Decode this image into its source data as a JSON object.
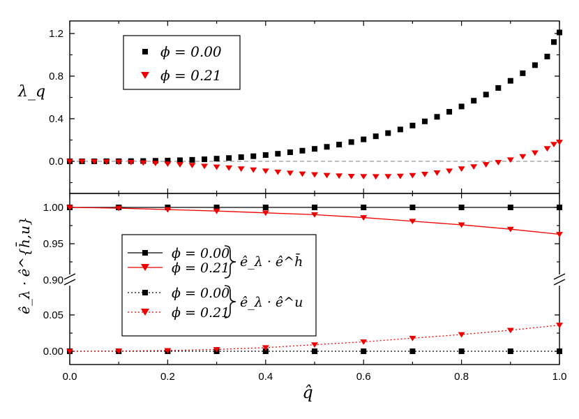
{
  "chart_data": [
    {
      "type": "scatter",
      "panel": "top",
      "ylabel": "λ_q",
      "xlim": [
        0,
        1
      ],
      "ylim": [
        -0.2,
        1.3
      ],
      "yticks": [
        "1.2",
        "0.8",
        "0.4",
        "0.0"
      ],
      "reference_line": 0.0,
      "legend": {
        "placement": "top-left",
        "entries": [
          "ϕ = 0.00",
          "ϕ = 0.21"
        ]
      },
      "series": [
        {
          "name": "ϕ = 0.00",
          "marker": "square",
          "color": "#000000",
          "points": [
            [
              0.0,
              0.0
            ],
            [
              0.025,
              0.0
            ],
            [
              0.05,
              0.0
            ],
            [
              0.075,
              0.001
            ],
            [
              0.1,
              0.001
            ],
            [
              0.125,
              0.002
            ],
            [
              0.15,
              0.003
            ],
            [
              0.175,
              0.005
            ],
            [
              0.2,
              0.007
            ],
            [
              0.225,
              0.01
            ],
            [
              0.25,
              0.014
            ],
            [
              0.275,
              0.019
            ],
            [
              0.3,
              0.025
            ],
            [
              0.325,
              0.031
            ],
            [
              0.35,
              0.039
            ],
            [
              0.375,
              0.048
            ],
            [
              0.4,
              0.059
            ],
            [
              0.425,
              0.071
            ],
            [
              0.45,
              0.085
            ],
            [
              0.475,
              0.1
            ],
            [
              0.5,
              0.117
            ],
            [
              0.525,
              0.136
            ],
            [
              0.55,
              0.157
            ],
            [
              0.575,
              0.181
            ],
            [
              0.6,
              0.206
            ],
            [
              0.625,
              0.235
            ],
            [
              0.65,
              0.265
            ],
            [
              0.675,
              0.299
            ],
            [
              0.7,
              0.336
            ],
            [
              0.725,
              0.375
            ],
            [
              0.75,
              0.418
            ],
            [
              0.775,
              0.465
            ],
            [
              0.8,
              0.515
            ],
            [
              0.825,
              0.569
            ],
            [
              0.85,
              0.627
            ],
            [
              0.875,
              0.689
            ],
            [
              0.9,
              0.756
            ],
            [
              0.925,
              0.827
            ],
            [
              0.95,
              0.903
            ],
            [
              0.975,
              0.984
            ],
            [
              1.0,
              1.12
            ],
            [
              1.0,
              1.21
            ]
          ]
        },
        {
          "name": "ϕ = 0.21",
          "marker": "triangle-down",
          "color": "#ee0000",
          "points": [
            [
              0.0,
              0.0
            ],
            [
              0.025,
              -0.001
            ],
            [
              0.05,
              -0.002
            ],
            [
              0.075,
              -0.004
            ],
            [
              0.1,
              -0.006
            ],
            [
              0.125,
              -0.009
            ],
            [
              0.15,
              -0.013
            ],
            [
              0.175,
              -0.018
            ],
            [
              0.2,
              -0.024
            ],
            [
              0.225,
              -0.03
            ],
            [
              0.25,
              -0.037
            ],
            [
              0.275,
              -0.045
            ],
            [
              0.3,
              -0.053
            ],
            [
              0.325,
              -0.061
            ],
            [
              0.35,
              -0.07
            ],
            [
              0.375,
              -0.08
            ],
            [
              0.4,
              -0.09
            ],
            [
              0.425,
              -0.1
            ],
            [
              0.45,
              -0.11
            ],
            [
              0.475,
              -0.118
            ],
            [
              0.5,
              -0.125
            ],
            [
              0.525,
              -0.131
            ],
            [
              0.55,
              -0.136
            ],
            [
              0.575,
              -0.14
            ],
            [
              0.6,
              -0.142
            ],
            [
              0.625,
              -0.143
            ],
            [
              0.65,
              -0.142
            ],
            [
              0.675,
              -0.139
            ],
            [
              0.7,
              -0.132
            ],
            [
              0.725,
              -0.121
            ],
            [
              0.75,
              -0.107
            ],
            [
              0.775,
              -0.09
            ],
            [
              0.8,
              -0.07
            ],
            [
              0.825,
              -0.05
            ],
            [
              0.85,
              -0.03
            ],
            [
              0.875,
              -0.01
            ],
            [
              0.9,
              0.015
            ],
            [
              0.925,
              0.045
            ],
            [
              0.95,
              0.08
            ],
            [
              0.975,
              0.12
            ],
            [
              1.0,
              0.16
            ],
            [
              1.0,
              0.18
            ]
          ]
        }
      ]
    },
    {
      "type": "line",
      "panel": "bottom",
      "ylabel": "ê_λ · ê^{h̄,u}",
      "xlabel": "q̂",
      "xlim": [
        0,
        1
      ],
      "xticks": [
        "0.0",
        "0.2",
        "0.4",
        "0.6",
        "0.8",
        "1.0"
      ],
      "broken_axis": true,
      "upper_ylim": [
        0.9,
        1.0
      ],
      "upper_yticks": [
        "1.00",
        "0.95",
        "0.90"
      ],
      "lower_ylim": [
        0,
        0.05
      ],
      "lower_yticks": [
        "0.05",
        "0.00"
      ],
      "legend": {
        "placement": "center-left",
        "entries": [
          "ϕ = 0.00",
          "ϕ = 0.21",
          "ϕ = 0.00",
          "ϕ = 0.21"
        ],
        "group_labels": [
          "ê_λ · ê^h̄",
          "ê_λ · ê^u"
        ]
      },
      "x": [
        0.0,
        0.1,
        0.2,
        0.3,
        0.4,
        0.5,
        0.6,
        0.7,
        0.8,
        0.9,
        1.0
      ],
      "series": [
        {
          "name": "ϕ = 0.00",
          "group": "ê_λ · ê^h̄",
          "segment": "upper",
          "style": "solid",
          "marker": "square",
          "color": "#000000",
          "values": [
            1.0,
            1.0,
            1.0,
            1.0,
            1.0,
            1.0,
            1.0,
            1.0,
            1.0,
            1.0,
            1.0
          ]
        },
        {
          "name": "ϕ = 0.21",
          "group": "ê_λ · ê^h̄",
          "segment": "upper",
          "style": "solid",
          "marker": "triangle-down",
          "color": "#ee0000",
          "values": [
            1.0,
            0.999,
            0.997,
            0.995,
            0.9925,
            0.99,
            0.986,
            0.981,
            0.976,
            0.97,
            0.963
          ]
        },
        {
          "name": "ϕ = 0.00",
          "group": "ê_λ · ê^u",
          "segment": "lower",
          "style": "dotted",
          "marker": "square",
          "color": "#000000",
          "values": [
            0.0,
            0.0,
            0.0,
            0.0,
            0.0,
            0.0,
            0.0,
            0.0,
            0.0,
            0.0,
            0.0
          ]
        },
        {
          "name": "ϕ = 0.21",
          "group": "ê_λ · ê^u",
          "segment": "lower",
          "style": "dotted",
          "marker": "triangle-down",
          "color": "#ee0000",
          "values": [
            0.0,
            0.0003,
            0.001,
            0.0025,
            0.005,
            0.009,
            0.013,
            0.018,
            0.023,
            0.029,
            0.036
          ]
        }
      ]
    }
  ]
}
